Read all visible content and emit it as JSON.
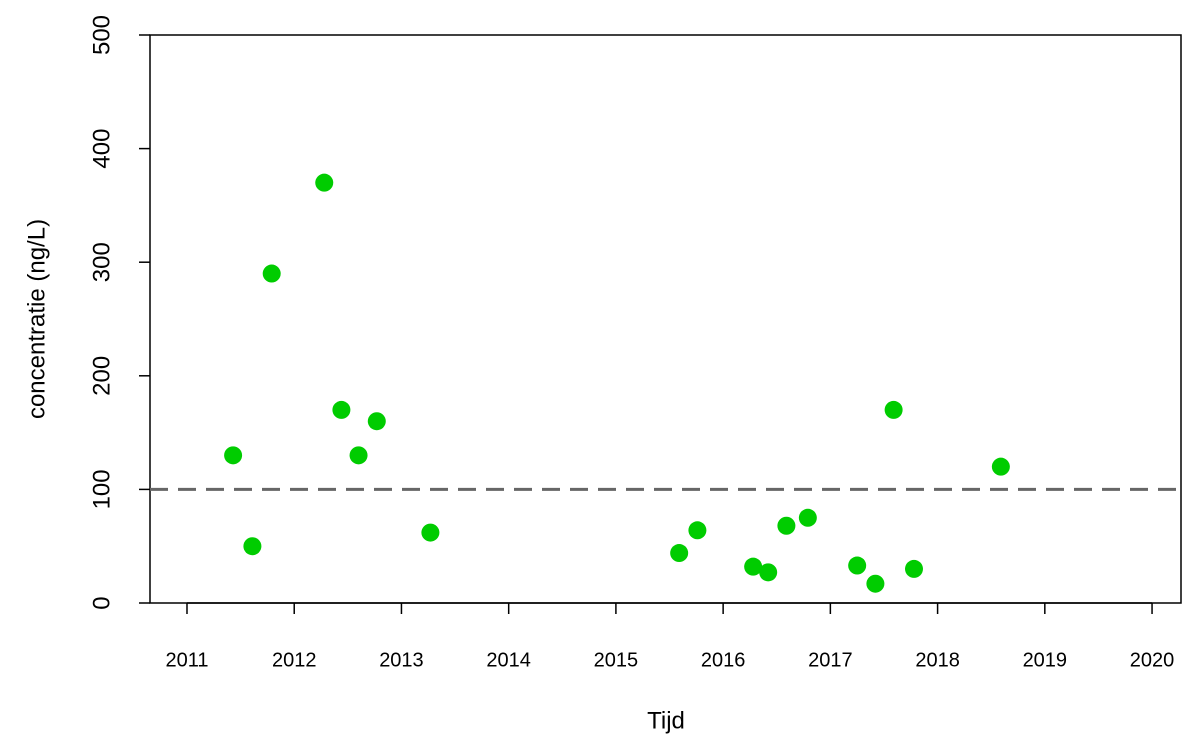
{
  "chart_data": {
    "type": "scatter",
    "x_label": "Tijd",
    "y_label": "concentratie (ng/L)",
    "x": [
      2011.43,
      2011.61,
      2011.79,
      2012.28,
      2012.44,
      2012.6,
      2012.77,
      2013.27,
      2015.59,
      2015.76,
      2016.28,
      2016.42,
      2016.59,
      2016.79,
      2017.25,
      2017.42,
      2017.59,
      2017.78,
      2018.59
    ],
    "values": [
      130,
      50,
      290,
      370,
      170,
      130,
      160,
      62,
      44,
      64,
      32,
      27,
      68,
      75,
      33,
      17,
      170,
      30,
      120
    ],
    "color": "#00cc00",
    "hline": 100,
    "hline_color": "#666666",
    "xlim": [
      2010.655,
      2020.27
    ],
    "xticks": [
      2011,
      2012,
      2013,
      2014,
      2015,
      2016,
      2017,
      2018,
      2019,
      2020
    ],
    "ylim": [
      0,
      500
    ],
    "yticks": [
      0,
      100,
      200,
      300,
      400,
      500
    ]
  }
}
